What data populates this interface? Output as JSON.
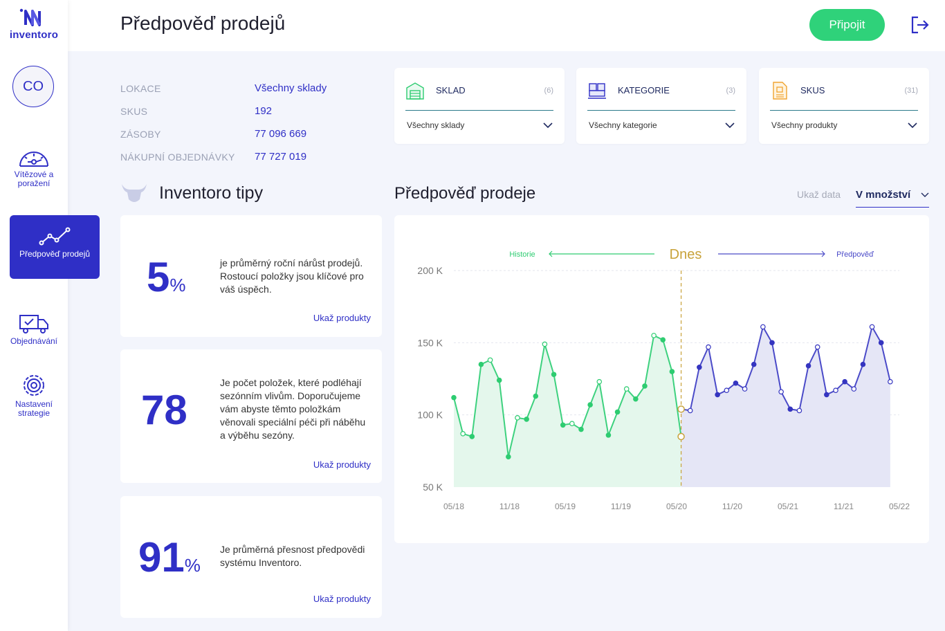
{
  "app": {
    "logo_text": "inventoro"
  },
  "header": {
    "title": "Předpověď prodejů",
    "connect_label": "Připojit"
  },
  "sidebar": {
    "avatar_initials": "CO",
    "items": [
      {
        "label": "Vítězové a poražení",
        "icon": "speedometer-icon"
      },
      {
        "label": "Předpověď prodejů",
        "icon": "trend-line-icon",
        "active": true
      },
      {
        "label": "Objednávání",
        "icon": "delivery-truck-icon"
      },
      {
        "label": "Nastavení strategie",
        "icon": "gear-settings-icon"
      }
    ]
  },
  "info": [
    {
      "label": "LOKACE",
      "value": "Všechny sklady"
    },
    {
      "label": "SKUS",
      "value": "192"
    },
    {
      "label": "ZÁSOBY",
      "value": "77 096 669"
    },
    {
      "label": "NÁKUPNÍ OBJEDNÁVKY",
      "value": "77 727 019"
    }
  ],
  "filters": [
    {
      "title": "SKLAD",
      "count": "(6)",
      "selected": "Všechny sklady",
      "icon": "warehouse-icon"
    },
    {
      "title": "KATEGORIE",
      "count": "(3)",
      "selected": "Všechny kategorie",
      "icon": "boxes-icon"
    },
    {
      "title": "SKUS",
      "count": "(31)",
      "selected": "Všechny produkty",
      "icon": "document-box-icon"
    }
  ],
  "tips": {
    "title": "Inventoro tipy",
    "cards": [
      {
        "value": "5",
        "suffix": "%",
        "text": "je průměrný roční nárůst prodejů. Rostoucí položky jsou klíčové pro váš úspěch.",
        "link": "Ukaž produkty"
      },
      {
        "value": "78",
        "suffix": "",
        "text": "Je počet položek, které podléhají sezónním vlivům. Doporučujeme vám abyste těmto položkám věnovali speciální péči při náběhu a výběhu sezóny.",
        "link": "Ukaž produkty"
      },
      {
        "value": "91",
        "suffix": "%",
        "text": "Je průměrná přesnost předpovědi systému Inventoro.",
        "link": "Ukaž produkty"
      }
    ]
  },
  "chart_section": {
    "title": "Předpověď prodeje",
    "show_data_label": "Ukaž data",
    "show_data_value": "V množství"
  },
  "colors": {
    "primary": "#2f2fc6",
    "history": "#2ecc71",
    "forecast": "#4a4ac8",
    "today": "#c8a23a",
    "connect": "#2fd27a"
  },
  "chart_data": {
    "type": "area",
    "today_label": "Dnes",
    "history_label": "Historie",
    "forecast_label": "Předpověď",
    "y_ticks": [
      "200 K",
      "150 K",
      "100 K",
      "50 K"
    ],
    "y_tick_values": [
      200,
      150,
      100,
      50
    ],
    "x_ticks": [
      "05/18",
      "11/18",
      "05/19",
      "11/19",
      "05/20",
      "11/20",
      "05/21",
      "11/21",
      "05/22"
    ],
    "ylim": [
      50,
      200
    ],
    "unit": "K",
    "today_index": 25,
    "series": [
      {
        "name": "Historie",
        "color": "#2ecc71",
        "values": [
          112,
          87,
          85,
          135,
          138,
          124,
          71,
          98,
          97,
          113,
          149,
          128,
          93,
          94,
          90,
          107,
          123,
          86,
          102,
          118,
          111,
          120,
          155,
          152,
          130,
          85
        ]
      },
      {
        "name": "Předpověď",
        "color": "#4a4ac8",
        "values": [
          104,
          103,
          133,
          147,
          114,
          117,
          122,
          118,
          135,
          161,
          150,
          116,
          104,
          103,
          134,
          147,
          114,
          117,
          123,
          118,
          135,
          161,
          150,
          123
        ]
      }
    ]
  }
}
